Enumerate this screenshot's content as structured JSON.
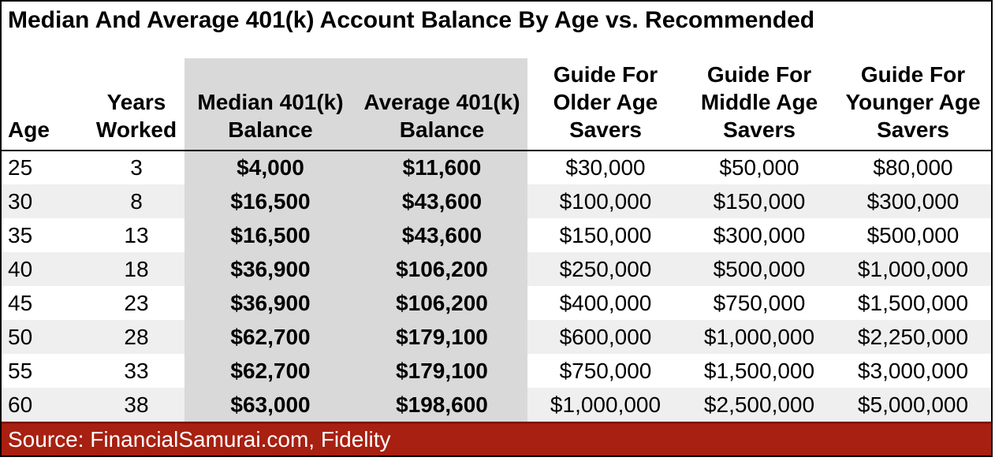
{
  "title": "Median And Average 401(k) Account Balance By Age vs. Recommended",
  "source_bar": {
    "text": "Source: FinancialSamurai.com, Fidelity"
  },
  "colors": {
    "highlight_column_bg": "#d9d9d9",
    "stripe_row_bg": "#efefef",
    "source_bar_bg": "#a72011",
    "source_bar_top_edge": "#7d180c",
    "source_bar_text": "#ffffff",
    "border": "#000000"
  },
  "table": {
    "headers": [
      {
        "key": "age",
        "label": "Age",
        "align": "left",
        "highlight": false
      },
      {
        "key": "years-worked",
        "label": "Years\nWorked",
        "align": "center",
        "highlight": false
      },
      {
        "key": "median-401k-balance",
        "label": "Median 401(k)\nBalance",
        "align": "center",
        "highlight": true
      },
      {
        "key": "average-401k-balance",
        "label": "Average 401(k)\nBalance",
        "align": "center",
        "highlight": true
      },
      {
        "key": "guide-older",
        "label": "Guide For\nOlder Age\nSavers",
        "align": "center",
        "highlight": false
      },
      {
        "key": "guide-middle",
        "label": "Guide For\nMiddle Age\nSavers",
        "align": "center",
        "highlight": false
      },
      {
        "key": "guide-younger",
        "label": "Guide For\nYounger Age\nSavers",
        "align": "center",
        "highlight": false
      }
    ]
  },
  "chart_data": {
    "type": "table",
    "title": "Median And Average 401(k) Account Balance By Age vs. Recommended",
    "columns": [
      "Age",
      "Years Worked",
      "Median 401(k) Balance",
      "Average 401(k) Balance",
      "Guide For Older Age Savers",
      "Guide For Middle Age Savers",
      "Guide For Younger Age Savers"
    ],
    "rows": [
      [
        "25",
        "3",
        "$4,000",
        "$11,600",
        "$30,000",
        "$50,000",
        "$80,000"
      ],
      [
        "30",
        "8",
        "$16,500",
        "$43,600",
        "$100,000",
        "$150,000",
        "$300,000"
      ],
      [
        "35",
        "13",
        "$16,500",
        "$43,600",
        "$150,000",
        "$300,000",
        "$500,000"
      ],
      [
        "40",
        "18",
        "$36,900",
        "$106,200",
        "$250,000",
        "$500,000",
        "$1,000,000"
      ],
      [
        "45",
        "23",
        "$36,900",
        "$106,200",
        "$400,000",
        "$750,000",
        "$1,500,000"
      ],
      [
        "50",
        "28",
        "$62,700",
        "$179,100",
        "$600,000",
        "$1,000,000",
        "$2,250,000"
      ],
      [
        "55",
        "33",
        "$62,700",
        "$179,100",
        "$750,000",
        "$1,500,000",
        "$3,000,000"
      ],
      [
        "60",
        "38",
        "$63,000",
        "$198,600",
        "$1,000,000",
        "$2,500,000",
        "$5,000,000"
      ]
    ],
    "source": "Source: FinancialSamurai.com, Fidelity",
    "layout_hints": {
      "highlighted_columns": [
        "Median 401(k) Balance",
        "Average 401(k) Balance"
      ],
      "striped_rows": [
        1,
        3,
        5,
        7
      ],
      "grid": "off"
    }
  }
}
